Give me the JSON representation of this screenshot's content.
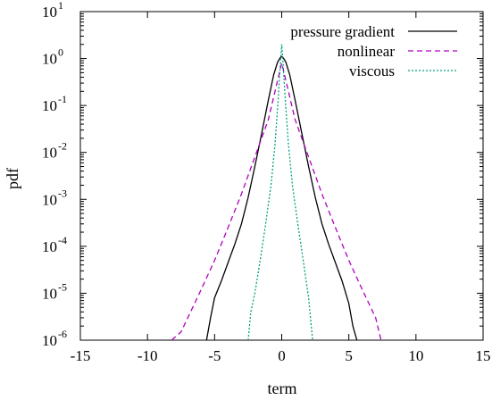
{
  "chart_data": {
    "type": "line",
    "xlabel": "term",
    "ylabel": "pdf",
    "xlim": [
      -15,
      15
    ],
    "ylim_log10": [
      -6,
      1
    ],
    "yscale": "log",
    "grid": false,
    "legend_position": "top-right",
    "x_ticks": [
      {
        "value": -15,
        "label": "-15"
      },
      {
        "value": -10,
        "label": "-10"
      },
      {
        "value": -5,
        "label": "-5"
      },
      {
        "value": 0,
        "label": "0"
      },
      {
        "value": 5,
        "label": "5"
      },
      {
        "value": 10,
        "label": "10"
      },
      {
        "value": 15,
        "label": "15"
      }
    ],
    "y_ticks": [
      {
        "exp": -6,
        "base": "10",
        "sup": "-6"
      },
      {
        "exp": -5,
        "base": "10",
        "sup": "-5"
      },
      {
        "exp": -4,
        "base": "10",
        "sup": "-4"
      },
      {
        "exp": -3,
        "base": "10",
        "sup": "-3"
      },
      {
        "exp": -2,
        "base": "10",
        "sup": "-2"
      },
      {
        "exp": -1,
        "base": "10",
        "sup": "-1"
      },
      {
        "exp": 0,
        "base": "10",
        "sup": "0"
      },
      {
        "exp": 1,
        "base": "10",
        "sup": "1"
      }
    ],
    "series": [
      {
        "name": "pressure gradient",
        "color": "#000000",
        "dash": "solid",
        "x": [
          -5.6,
          -5.3,
          -5.0,
          -4.5,
          -4.0,
          -3.5,
          -3.0,
          -2.5,
          -2.0,
          -1.5,
          -1.0,
          -0.6,
          -0.3,
          -0.1,
          0.0,
          0.1,
          0.3,
          0.6,
          1.0,
          1.5,
          2.0,
          2.5,
          3.0,
          3.5,
          4.0,
          4.5,
          5.0,
          5.3,
          5.6
        ],
        "y": [
          1e-06,
          3e-06,
          8e-06,
          1.8e-05,
          4.5e-05,
          0.00011,
          0.0003,
          0.0011,
          0.005,
          0.025,
          0.13,
          0.45,
          0.85,
          1.05,
          1.1,
          1.05,
          0.85,
          0.45,
          0.13,
          0.025,
          0.005,
          0.0011,
          0.0003,
          0.00011,
          4.5e-05,
          1.8e-05,
          6e-06,
          2e-06,
          1e-06
        ]
      },
      {
        "name": "nonlinear",
        "color": "#b000c0",
        "dash": "dashed",
        "x": [
          -8.2,
          -7.5,
          -7.0,
          -6.0,
          -5.0,
          -4.0,
          -3.0,
          -2.0,
          -1.0,
          -0.5,
          0.0,
          0.5,
          1.0,
          2.0,
          3.0,
          4.0,
          5.0,
          6.0,
          7.0,
          7.4
        ],
        "y": [
          1e-06,
          1.5e-06,
          3e-06,
          1.2e-05,
          5e-05,
          0.00025,
          0.0013,
          0.008,
          0.05,
          0.2,
          0.8,
          0.2,
          0.05,
          0.008,
          0.0013,
          0.00025,
          5e-05,
          1.2e-05,
          3e-06,
          1e-06
        ]
      },
      {
        "name": "viscous",
        "color": "#00a080",
        "dash": "dotted",
        "x": [
          -2.5,
          -2.3,
          -2.0,
          -1.6,
          -1.2,
          -0.8,
          -0.5,
          -0.25,
          -0.1,
          0.0,
          0.1,
          0.25,
          0.5,
          0.8,
          1.2,
          1.6,
          2.0,
          2.3
        ],
        "y": [
          1e-06,
          4e-06,
          1e-05,
          5e-05,
          0.0003,
          0.002,
          0.015,
          0.15,
          0.8,
          2.0,
          0.8,
          0.15,
          0.015,
          0.002,
          0.0003,
          5e-05,
          8e-06,
          1e-06
        ]
      }
    ]
  }
}
